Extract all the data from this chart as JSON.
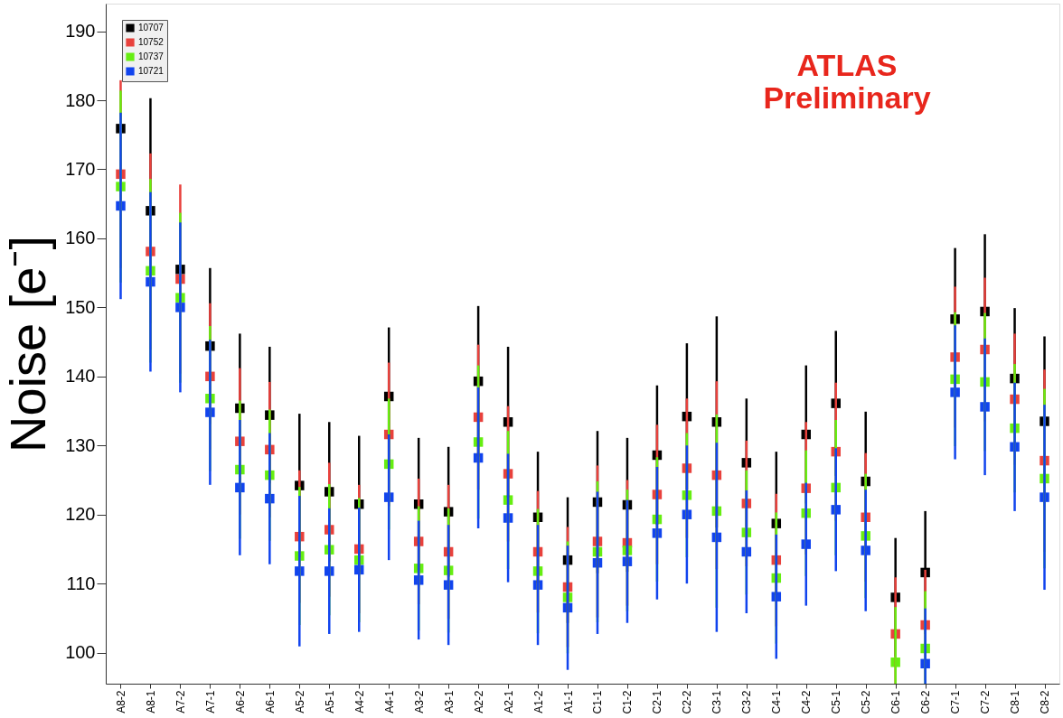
{
  "chart_data": {
    "type": "scatter",
    "ylabel": "Noise [e⁻]",
    "annotations": [
      "ATLAS",
      "Preliminary"
    ],
    "categories": [
      "A8-2",
      "A8-1",
      "A7-2",
      "A7-1",
      "A6-2",
      "A6-1",
      "A5-2",
      "A5-1",
      "A4-2",
      "A4-1",
      "A3-2",
      "A3-1",
      "A2-2",
      "A2-1",
      "A1-2",
      "A1-1",
      "C1-1",
      "C1-2",
      "C2-1",
      "C2-2",
      "C3-1",
      "C3-2",
      "C4-1",
      "C4-2",
      "C5-1",
      "C5-2",
      "C6-1",
      "C6-2",
      "C7-1",
      "C7-2",
      "C8-1",
      "C8-2"
    ],
    "series": [
      {
        "name": "10707",
        "color": "#000000",
        "values": [
          175.9,
          164.0,
          155.5,
          144.4,
          135.4,
          134.4,
          124.2,
          123.3,
          121.5,
          137.1,
          121.5,
          120.4,
          139.3,
          133.4,
          119.6,
          113.4,
          121.8,
          121.4,
          128.6,
          134.2,
          133.4,
          127.5,
          118.7,
          131.6,
          136.1,
          124.8,
          108.0,
          111.6,
          148.3,
          149.4,
          139.7,
          133.5
        ],
        "errors": [
          null,
          16.3,
          null,
          11.3,
          10.8,
          9.9,
          10.4,
          10.1,
          9.9,
          10,
          9.6,
          9.4,
          10.9,
          10.9,
          9.5,
          9.1,
          10.3,
          9.7,
          10.1,
          10.6,
          15.3,
          9.3,
          10.4,
          10,
          10.5,
          10.1,
          8.6,
          8.9,
          10.3,
          11.2,
          10.2,
          12.3
        ]
      },
      {
        "name": "10752",
        "color": "#e8413c",
        "values": [
          169.3,
          158.1,
          154.1,
          140.0,
          130.6,
          129.4,
          116.8,
          117.8,
          115.0,
          131.6,
          116.1,
          114.6,
          134.1,
          125.9,
          114.6,
          109.5,
          116.1,
          115.9,
          122.9,
          126.7,
          125.7,
          121.6,
          113.4,
          123.8,
          129.1,
          119.6,
          102.7,
          104.0,
          142.8,
          143.9,
          136.7,
          127.8
        ],
        "errors": [
          13.6,
          14.2,
          13.7,
          10.6,
          10.6,
          9.8,
          9.6,
          9.7,
          9.3,
          10.4,
          9.1,
          9.7,
          10.5,
          9.8,
          8.8,
          8.7,
          11,
          9.1,
          10.1,
          10.1,
          13.6,
          9.1,
          9.6,
          9.6,
          10,
          9.3,
          [
            95.5,
            110.9
          ],
          8,
          10.2,
          10.4,
          9.5,
          13.2
        ]
      },
      {
        "name": "10737",
        "color": "#66ee11",
        "values": [
          167.5,
          155.3,
          151.4,
          136.8,
          126.5,
          125.7,
          114.0,
          114.9,
          113.4,
          127.3,
          112.2,
          111.9,
          130.5,
          122.1,
          111.8,
          108.0,
          114.6,
          114.8,
          119.3,
          122.8,
          120.5,
          117.4,
          110.8,
          120.2,
          123.9,
          116.9,
          98.6,
          100.6,
          139.6,
          139.2,
          132.5,
          125.2
        ],
        "errors": [
          13.9,
          13.3,
          12.3,
          10.5,
          10,
          9.5,
          10,
          9.5,
          9,
          9.5,
          9,
          9,
          11.1,
          10,
          9,
          8.1,
          10.2,
          8.8,
          9,
          9,
          14,
          9,
          9.5,
          9.1,
          9.8,
          9,
          [
            95.5,
            106.6
          ],
          [
            95.5,
            108.9
          ],
          9.7,
          10,
          9.3,
          13
        ]
      },
      {
        "name": "10721",
        "color": "#1144ee",
        "values": [
          164.7,
          153.7,
          150.0,
          134.8,
          123.9,
          122.3,
          111.8,
          111.8,
          112.0,
          122.5,
          110.5,
          109.8,
          128.2,
          119.5,
          109.8,
          106.5,
          113.0,
          113.2,
          117.3,
          120.0,
          116.7,
          114.6,
          108.1,
          115.7,
          120.7,
          114.8,
          null,
          98.4,
          137.7,
          135.6,
          129.8,
          122.5
        ],
        "errors": [
          13.5,
          13,
          12.3,
          10.5,
          9.8,
          9.5,
          10.9,
          9.1,
          9,
          9.1,
          8.6,
          8.7,
          10.2,
          9.3,
          8.7,
          9,
          10.3,
          8.9,
          9.6,
          10,
          13.7,
          8.9,
          9,
          8.9,
          8.9,
          8.8,
          null,
          [
            95.5,
            106.4
          ],
          9.7,
          9.9,
          9.3,
          13.4
        ]
      }
    ],
    "ylim": [
      95.5,
      194
    ],
    "yticks": [
      100,
      110,
      120,
      130,
      140,
      150,
      160,
      170,
      180,
      190
    ],
    "grid": false,
    "legend": "top left",
    "marker": "square"
  }
}
